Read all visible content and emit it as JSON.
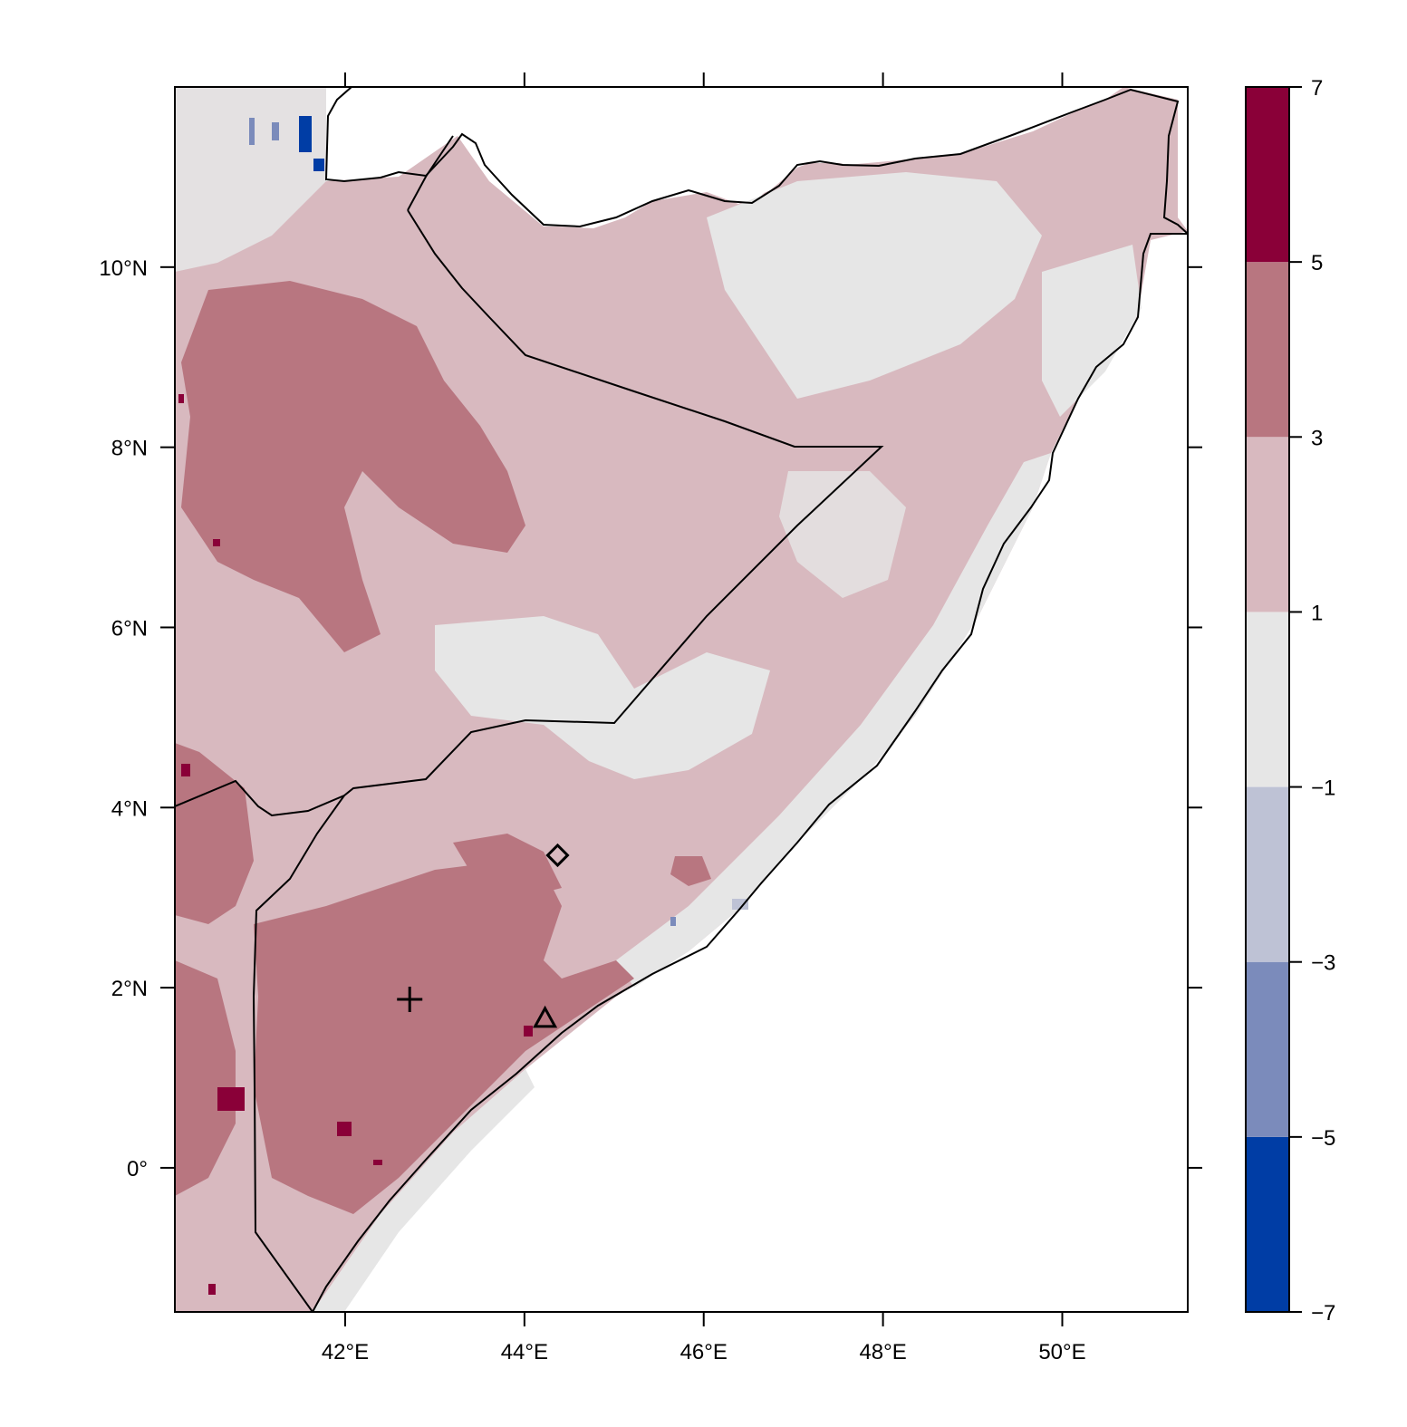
{
  "map": {
    "x_ticks": [
      {
        "lon": 42,
        "label": "42°E"
      },
      {
        "lon": 44,
        "label": "44°E"
      },
      {
        "lon": 46,
        "label": "46°E"
      },
      {
        "lon": 48,
        "label": "48°E"
      },
      {
        "lon": 50,
        "label": "50°E"
      }
    ],
    "y_ticks": [
      {
        "lat": 10,
        "label": "10°N"
      },
      {
        "lat": 8,
        "label": "8°N"
      },
      {
        "lat": 6,
        "label": "6°N"
      },
      {
        "lat": 4,
        "label": "4°N"
      },
      {
        "lat": 2,
        "label": "2°N"
      },
      {
        "lat": 0,
        "label": "0°"
      }
    ],
    "lon_range": [
      40.1,
      51.4
    ],
    "lat_range": [
      -1.6,
      12.0
    ],
    "markers": [
      {
        "symbol": "diamond",
        "lon": 44.37,
        "lat": 3.47
      },
      {
        "symbol": "plus",
        "lon": 42.72,
        "lat": 1.87
      },
      {
        "symbol": "triangle",
        "lon": 44.23,
        "lat": 1.66
      }
    ]
  },
  "colorbar": {
    "breaks": [
      -7,
      -5,
      -3,
      -1,
      1,
      3,
      5,
      7
    ],
    "labels": [
      "−7",
      "−5",
      "−3",
      "−1",
      "1",
      "3",
      "5",
      "7"
    ],
    "colors": [
      "#003da5",
      "#7b8bbb",
      "#bec2d5",
      "#e6e6e6",
      "#d8b9bf",
      "#b87680",
      "#8a0038"
    ]
  },
  "colors": {
    "land_default": "#d8b9bf",
    "ocean": "#ffffff"
  }
}
